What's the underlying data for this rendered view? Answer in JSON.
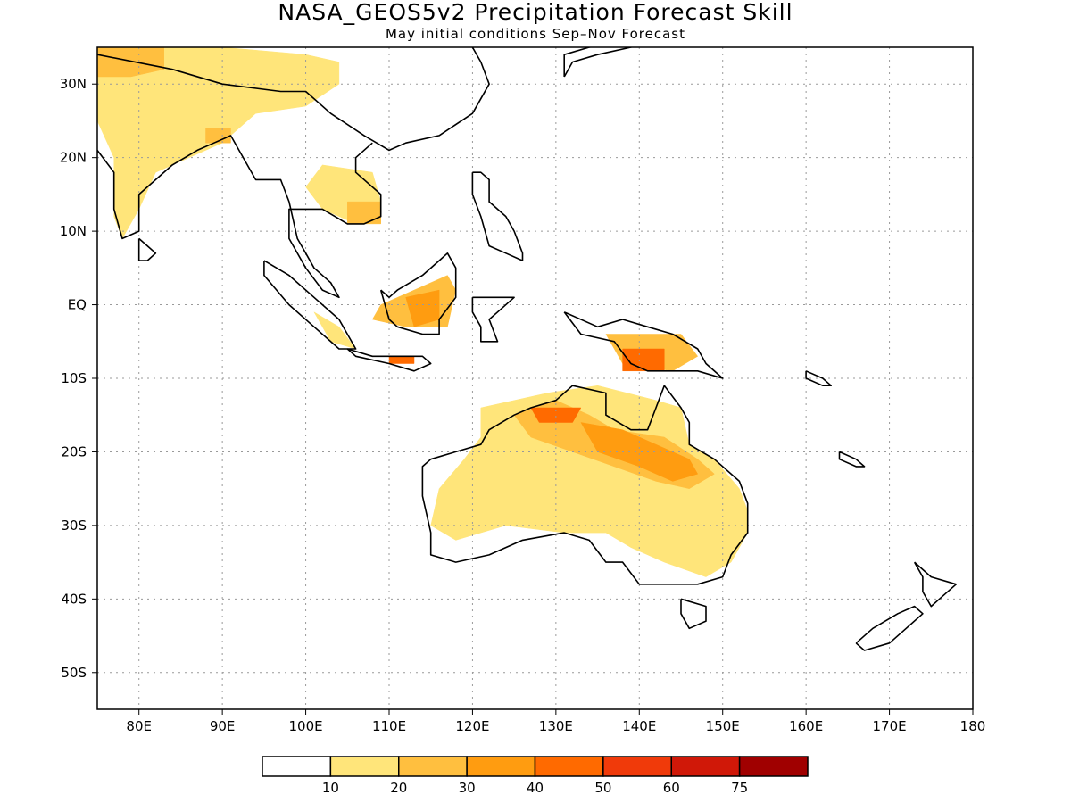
{
  "title": "NASA_GEOS5v2 Precipitation Forecast Skill",
  "subtitle": "May initial conditions  Sep–Nov Forecast",
  "map": {
    "lon_range": [
      75,
      180
    ],
    "lat_range": [
      -55,
      35
    ],
    "lon_ticks": [
      80,
      90,
      100,
      110,
      120,
      130,
      140,
      150,
      160,
      170,
      180
    ],
    "lon_tick_labels": [
      "80E",
      "90E",
      "100E",
      "110E",
      "120E",
      "130E",
      "140E",
      "150E",
      "160E",
      "170E",
      "180"
    ],
    "lat_ticks": [
      30,
      20,
      10,
      0,
      -10,
      -20,
      -30,
      -40,
      -50
    ],
    "lat_tick_labels": [
      "30N",
      "20N",
      "10N",
      "EQ",
      "10S",
      "20S",
      "30S",
      "40S",
      "50S"
    ],
    "grid": true
  },
  "colorbar": {
    "bounds": [
      "10",
      "20",
      "30",
      "40",
      "50",
      "60",
      "75"
    ],
    "colors": [
      "#ffffff",
      "#ffe57a",
      "#ffbf3f",
      "#ff9c10",
      "#ff6a00",
      "#f03a0a",
      "#d01808",
      "#a00000"
    ]
  },
  "skill_regions": [
    {
      "poly": [
        [
          75,
          35
        ],
        [
          90,
          35
        ],
        [
          100,
          34
        ],
        [
          104,
          33
        ],
        [
          104,
          30
        ],
        [
          100,
          27
        ],
        [
          94,
          26
        ],
        [
          90,
          22
        ],
        [
          86,
          20
        ],
        [
          82,
          18
        ],
        [
          80,
          13
        ],
        [
          78,
          9
        ],
        [
          77,
          12
        ],
        [
          77,
          20
        ],
        [
          75,
          25
        ]
      ],
      "level": 1
    },
    {
      "poly": [
        [
          75,
          35
        ],
        [
          83,
          35
        ],
        [
          83,
          32
        ],
        [
          79,
          31
        ],
        [
          75,
          31
        ]
      ],
      "level": 2
    },
    {
      "poly": [
        [
          88,
          24
        ],
        [
          91,
          24
        ],
        [
          91,
          22
        ],
        [
          88,
          22
        ]
      ],
      "level": 2
    },
    {
      "poly": [
        [
          102,
          19
        ],
        [
          108,
          18
        ],
        [
          109,
          14
        ],
        [
          106,
          11
        ],
        [
          102,
          13
        ],
        [
          100,
          16
        ]
      ],
      "level": 1
    },
    {
      "poly": [
        [
          105,
          14
        ],
        [
          109,
          14
        ],
        [
          109,
          11
        ],
        [
          105,
          11
        ]
      ],
      "level": 2
    },
    {
      "poly": [
        [
          109,
          0
        ],
        [
          117,
          4
        ],
        [
          118,
          2
        ],
        [
          117,
          -3
        ],
        [
          112,
          -3
        ],
        [
          108,
          -2
        ]
      ],
      "level": 2
    },
    {
      "poly": [
        [
          112,
          1
        ],
        [
          116,
          2
        ],
        [
          116,
          -2
        ],
        [
          113,
          -3
        ]
      ],
      "level": 3
    },
    {
      "poly": [
        [
          101,
          -1
        ],
        [
          104,
          -3
        ],
        [
          106,
          -6
        ],
        [
          103,
          -5
        ]
      ],
      "level": 1
    },
    {
      "poly": [
        [
          110,
          -7
        ],
        [
          113,
          -7
        ],
        [
          113,
          -8
        ],
        [
          110,
          -8
        ]
      ],
      "level": 4
    },
    {
      "poly": [
        [
          136,
          -4
        ],
        [
          145,
          -4
        ],
        [
          147,
          -7
        ],
        [
          144,
          -9
        ],
        [
          138,
          -8
        ]
      ],
      "level": 2
    },
    {
      "poly": [
        [
          138,
          -6
        ],
        [
          143,
          -6
        ],
        [
          143,
          -9
        ],
        [
          138,
          -9
        ]
      ],
      "level": 4
    },
    {
      "poly": [
        [
          121,
          -14
        ],
        [
          129,
          -12
        ],
        [
          135,
          -11
        ],
        [
          142,
          -13
        ],
        [
          145,
          -14
        ],
        [
          146,
          -19
        ],
        [
          149,
          -21
        ],
        [
          152,
          -25
        ],
        [
          153,
          -28
        ],
        [
          153,
          -31
        ],
        [
          151,
          -35
        ],
        [
          148,
          -37
        ],
        [
          143,
          -35
        ],
        [
          139,
          -33
        ],
        [
          136,
          -31
        ],
        [
          131,
          -31
        ],
        [
          124,
          -30
        ],
        [
          118,
          -32
        ],
        [
          115,
          -30
        ],
        [
          116,
          -25
        ],
        [
          119,
          -21
        ],
        [
          121,
          -18
        ]
      ],
      "level": 1
    },
    {
      "poly": [
        [
          125,
          -15
        ],
        [
          130,
          -13
        ],
        [
          134,
          -15
        ],
        [
          137,
          -17
        ],
        [
          143,
          -18
        ],
        [
          147,
          -21
        ],
        [
          149,
          -23
        ],
        [
          146,
          -25
        ],
        [
          142,
          -24
        ],
        [
          137,
          -22
        ],
        [
          132,
          -20
        ],
        [
          127,
          -18
        ]
      ],
      "level": 2
    },
    {
      "poly": [
        [
          133,
          -16
        ],
        [
          138,
          -17
        ],
        [
          142,
          -19
        ],
        [
          146,
          -21
        ],
        [
          147,
          -23
        ],
        [
          144,
          -24
        ],
        [
          140,
          -22
        ],
        [
          135,
          -20
        ]
      ],
      "level": 3
    },
    {
      "poly": [
        [
          127,
          -14
        ],
        [
          133,
          -14
        ],
        [
          132,
          -16
        ],
        [
          128,
          -16
        ]
      ],
      "level": 4
    }
  ],
  "coastlines": [
    [
      [
        75,
        34
      ],
      [
        84,
        32
      ],
      [
        90,
        30
      ],
      [
        97,
        29
      ],
      [
        100,
        29
      ],
      [
        103,
        26
      ],
      [
        107,
        23
      ],
      [
        110,
        21
      ],
      [
        112,
        22
      ],
      [
        116,
        23
      ],
      [
        120,
        26
      ],
      [
        122,
        30
      ],
      [
        121,
        33
      ],
      [
        120,
        35
      ]
    ],
    [
      [
        75,
        21
      ],
      [
        77,
        18
      ],
      [
        77,
        13
      ],
      [
        78,
        9
      ],
      [
        80,
        10
      ],
      [
        80,
        13
      ],
      [
        80,
        15
      ],
      [
        84,
        19
      ],
      [
        87,
        21
      ],
      [
        89,
        22
      ],
      [
        91,
        23
      ],
      [
        92,
        21
      ],
      [
        94,
        17
      ],
      [
        97,
        17
      ],
      [
        98,
        14
      ],
      [
        99,
        9
      ],
      [
        100,
        7
      ],
      [
        101,
        5
      ],
      [
        103,
        3
      ],
      [
        104,
        1
      ],
      [
        102,
        2
      ],
      [
        100,
        5
      ],
      [
        98,
        9
      ],
      [
        98,
        13
      ],
      [
        100,
        13
      ],
      [
        102,
        13
      ],
      [
        105,
        11
      ],
      [
        107,
        11
      ],
      [
        109,
        12
      ],
      [
        109,
        15
      ],
      [
        106,
        18
      ],
      [
        106,
        20
      ],
      [
        108,
        22
      ]
    ],
    [
      [
        80,
        9
      ],
      [
        81,
        8
      ],
      [
        82,
        7
      ],
      [
        81,
        6
      ],
      [
        80,
        6
      ],
      [
        80,
        8
      ],
      [
        80,
        9
      ]
    ],
    [
      [
        95,
        6
      ],
      [
        98,
        4
      ],
      [
        101,
        1
      ],
      [
        104,
        -2
      ],
      [
        106,
        -6
      ],
      [
        104,
        -6
      ],
      [
        101,
        -3
      ],
      [
        98,
        0
      ],
      [
        95,
        4
      ],
      [
        95,
        6
      ]
    ],
    [
      [
        105,
        -6
      ],
      [
        108,
        -7
      ],
      [
        111,
        -7
      ],
      [
        114,
        -7
      ],
      [
        115,
        -8
      ],
      [
        113,
        -9
      ],
      [
        110,
        -8
      ],
      [
        106,
        -7
      ],
      [
        105,
        -6
      ]
    ],
    [
      [
        109,
        2
      ],
      [
        110,
        1
      ],
      [
        111,
        2
      ],
      [
        114,
        4
      ],
      [
        116,
        6
      ],
      [
        117,
        7
      ],
      [
        118,
        5
      ],
      [
        118,
        1
      ],
      [
        116,
        -2
      ],
      [
        116,
        -4
      ],
      [
        114,
        -4
      ],
      [
        111,
        -3
      ],
      [
        110,
        -2
      ],
      [
        109,
        2
      ]
    ],
    [
      [
        120,
        1
      ],
      [
        122,
        1
      ],
      [
        125,
        1
      ],
      [
        123,
        -1
      ],
      [
        122,
        -2
      ],
      [
        123,
        -5
      ],
      [
        121,
        -5
      ],
      [
        121,
        -3
      ],
      [
        120,
        -1
      ],
      [
        120,
        1
      ]
    ],
    [
      [
        120,
        18
      ],
      [
        121,
        18
      ],
      [
        122,
        17
      ],
      [
        122,
        14
      ],
      [
        124,
        12
      ],
      [
        125,
        10
      ],
      [
        126,
        7
      ],
      [
        126,
        6
      ],
      [
        124,
        7
      ],
      [
        122,
        8
      ],
      [
        121,
        12
      ],
      [
        120,
        15
      ],
      [
        120,
        18
      ]
    ],
    [
      [
        131,
        -1
      ],
      [
        135,
        -3
      ],
      [
        138,
        -2
      ],
      [
        141,
        -3
      ],
      [
        144,
        -4
      ],
      [
        147,
        -6
      ],
      [
        148,
        -8
      ],
      [
        150,
        -10
      ],
      [
        147,
        -9
      ],
      [
        143,
        -9
      ],
      [
        141,
        -9
      ],
      [
        139,
        -8
      ],
      [
        137,
        -5
      ],
      [
        133,
        -4
      ],
      [
        131,
        -1
      ]
    ],
    [
      [
        115,
        -21
      ],
      [
        114,
        -22
      ],
      [
        114,
        -26
      ],
      [
        115,
        -31
      ],
      [
        115,
        -34
      ],
      [
        118,
        -35
      ],
      [
        122,
        -34
      ],
      [
        126,
        -32
      ],
      [
        131,
        -31
      ],
      [
        134,
        -32
      ],
      [
        136,
        -35
      ],
      [
        138,
        -35
      ],
      [
        140,
        -38
      ],
      [
        144,
        -38
      ],
      [
        147,
        -38
      ],
      [
        150,
        -37
      ],
      [
        151,
        -34
      ],
      [
        153,
        -31
      ],
      [
        153,
        -27
      ],
      [
        152,
        -24
      ],
      [
        149,
        -21
      ],
      [
        146,
        -19
      ],
      [
        146,
        -16
      ],
      [
        145,
        -14
      ],
      [
        143,
        -11
      ],
      [
        142,
        -14
      ],
      [
        141,
        -17
      ],
      [
        139,
        -17
      ],
      [
        136,
        -15
      ],
      [
        136,
        -12
      ],
      [
        132,
        -11
      ],
      [
        130,
        -13
      ],
      [
        127,
        -14
      ],
      [
        125,
        -15
      ],
      [
        122,
        -17
      ],
      [
        121,
        -19
      ],
      [
        118,
        -20
      ],
      [
        115,
        -21
      ]
    ],
    [
      [
        145,
        -40
      ],
      [
        148,
        -41
      ],
      [
        148,
        -43
      ],
      [
        146,
        -44
      ],
      [
        145,
        -42
      ],
      [
        145,
        -40
      ]
    ],
    [
      [
        166,
        -46
      ],
      [
        168,
        -44
      ],
      [
        171,
        -42
      ],
      [
        173,
        -41
      ],
      [
        174,
        -42
      ],
      [
        172,
        -44
      ],
      [
        170,
        -46
      ],
      [
        167,
        -47
      ],
      [
        166,
        -46
      ]
    ],
    [
      [
        173,
        -35
      ],
      [
        175,
        -37
      ],
      [
        178,
        -38
      ],
      [
        176,
        -40
      ],
      [
        175,
        -41
      ],
      [
        174,
        -39
      ],
      [
        174,
        -37
      ],
      [
        173,
        -35
      ]
    ],
    [
      [
        160,
        -9
      ],
      [
        162,
        -10
      ],
      [
        163,
        -11
      ],
      [
        162,
        -11
      ],
      [
        160,
        -10
      ],
      [
        160,
        -9
      ]
    ],
    [
      [
        164,
        -20
      ],
      [
        166,
        -21
      ],
      [
        167,
        -22
      ],
      [
        166,
        -22
      ],
      [
        164,
        -21
      ],
      [
        164,
        -20
      ]
    ],
    [
      [
        131,
        31
      ],
      [
        132,
        33
      ],
      [
        135,
        34
      ],
      [
        139,
        35
      ],
      [
        138,
        36
      ],
      [
        134,
        35
      ],
      [
        131,
        34
      ],
      [
        131,
        31
      ]
    ]
  ]
}
